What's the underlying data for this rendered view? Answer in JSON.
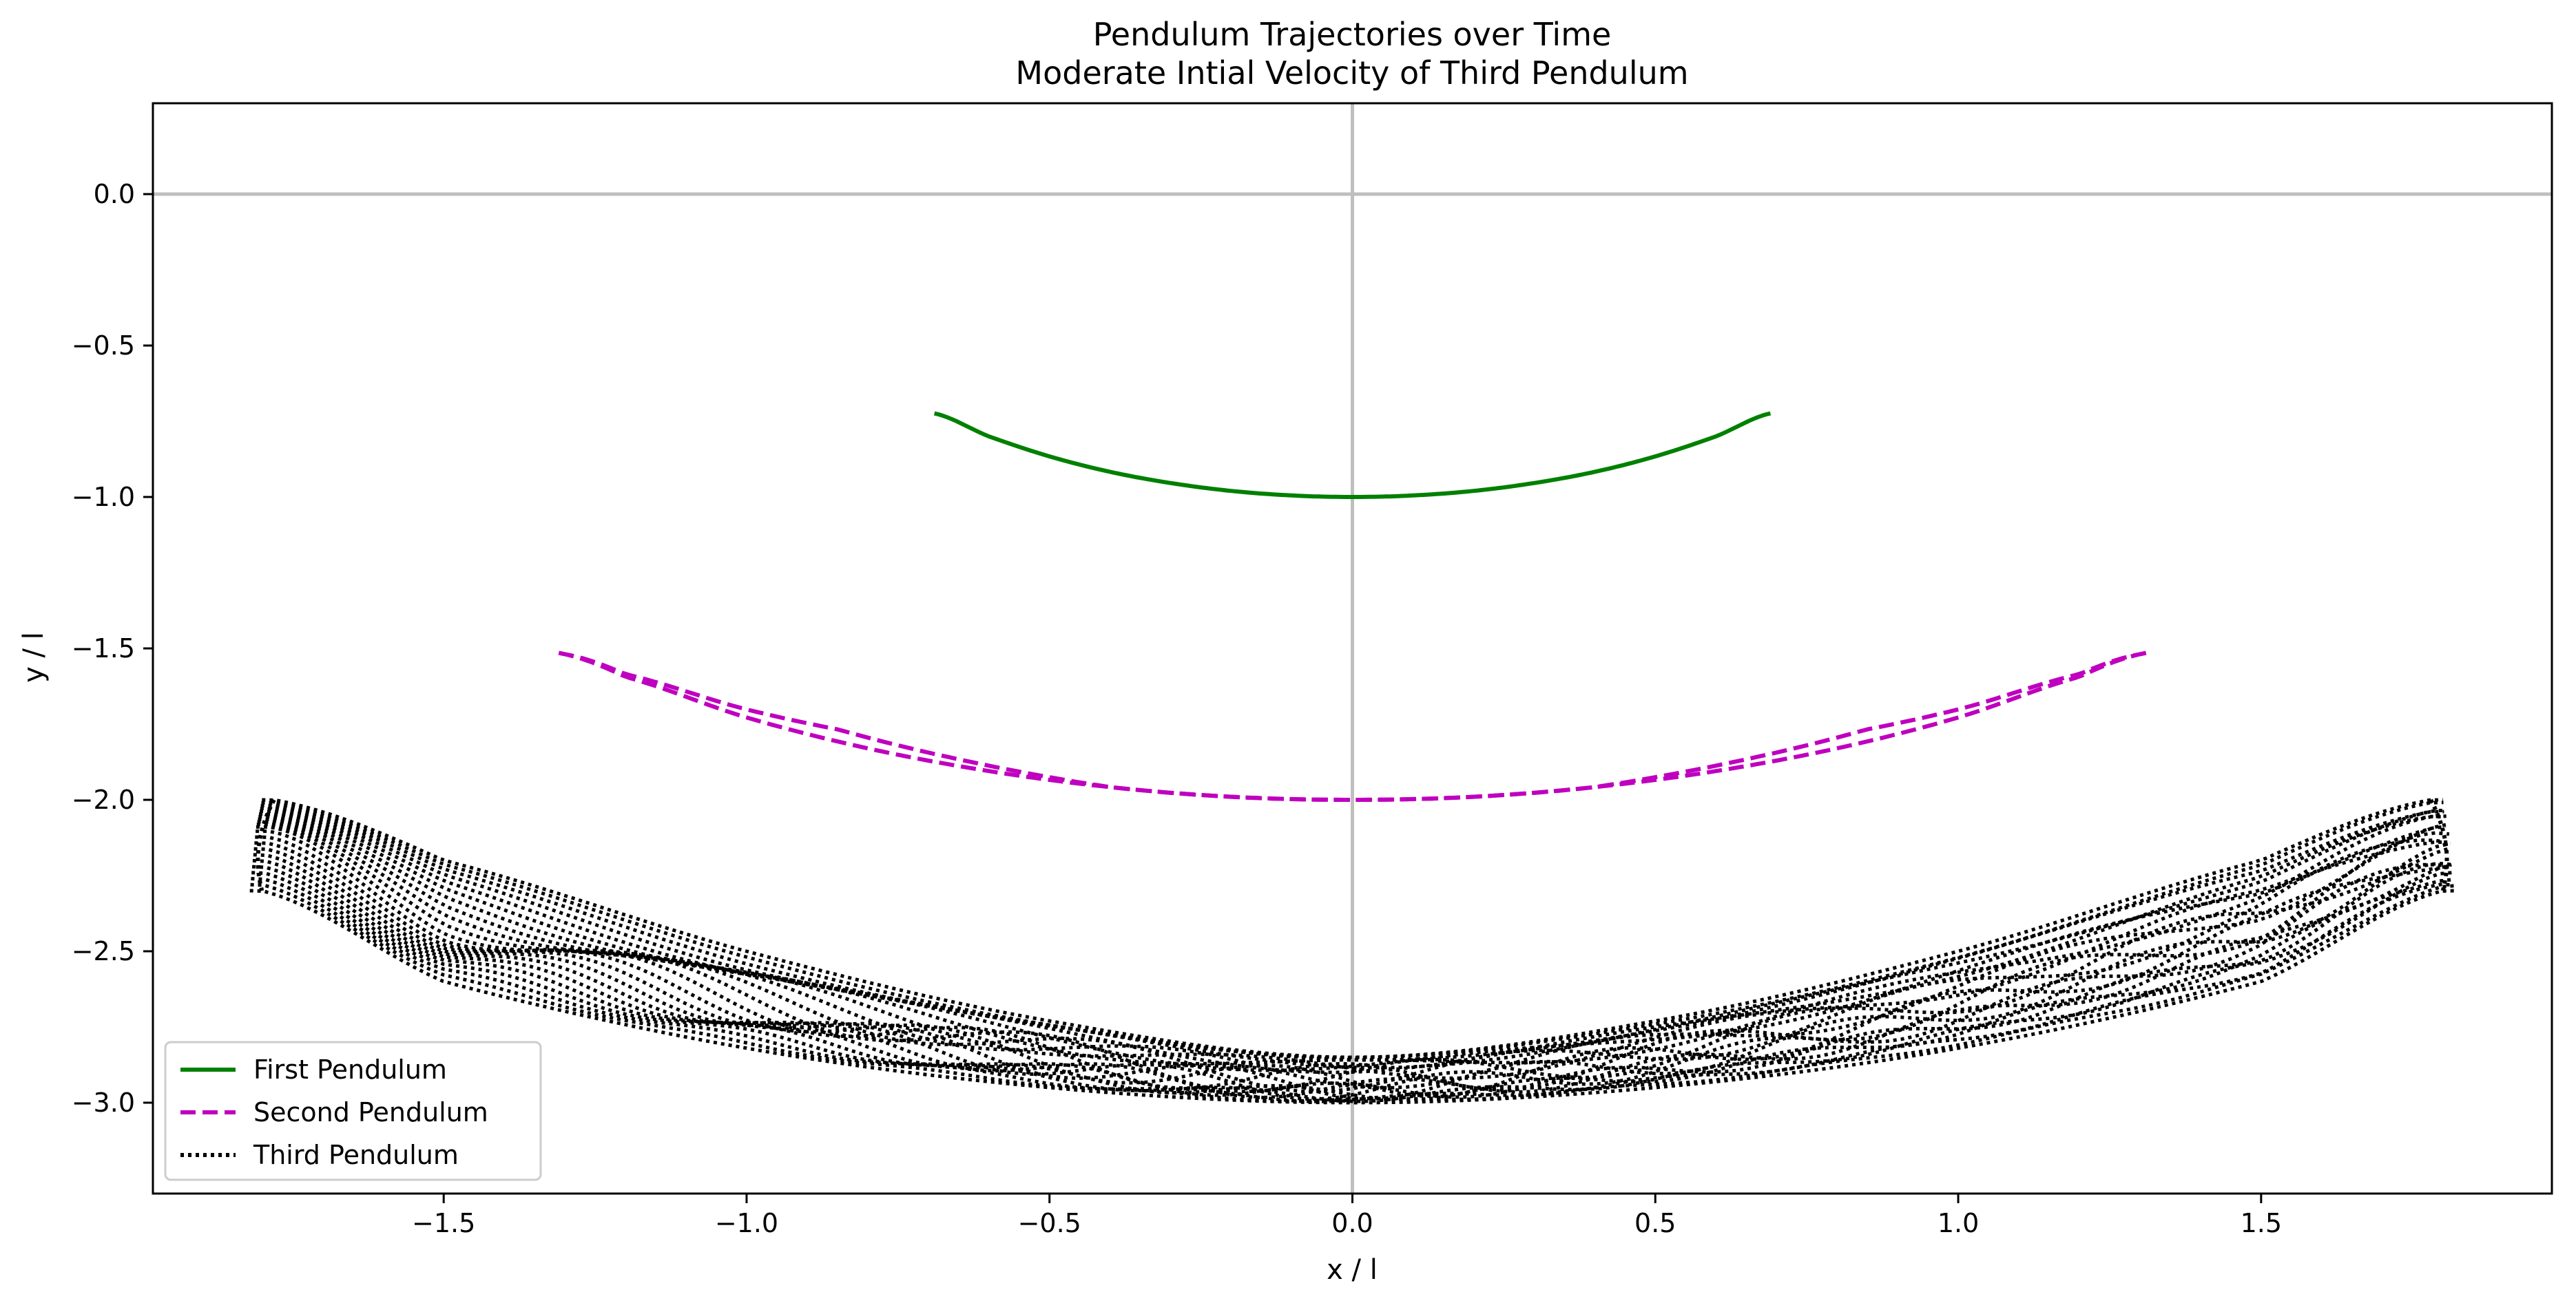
{
  "chart_data": {
    "type": "line",
    "title": "Pendulum Trajectories over Time",
    "subtitle": "Moderate Intial Velocity of Third Pendulum",
    "xlabel": "x / l",
    "ylabel": "y / l",
    "xlim": [
      -1.98,
      1.98
    ],
    "ylim": [
      -3.3,
      0.3
    ],
    "x_ticks": [
      -1.5,
      -1.0,
      -0.5,
      0.0,
      0.5,
      1.0,
      1.5
    ],
    "x_tick_labels": [
      "−1.5",
      "−1.0",
      "−0.5",
      "0.0",
      "0.5",
      "1.0",
      "1.5"
    ],
    "y_ticks": [
      0.0,
      -0.5,
      -1.0,
      -1.5,
      -2.0,
      -2.5,
      -3.0
    ],
    "y_tick_labels": [
      "0.0",
      "−0.5",
      "−1.0",
      "−1.5",
      "−2.0",
      "−2.5",
      "−3.0"
    ],
    "grid": false,
    "reference_lines": {
      "x": 0.0,
      "y": 0.0,
      "color": "#bfbfbf"
    },
    "legend": {
      "position": "lower-left"
    },
    "series": [
      {
        "name": "First Pendulum",
        "style": "solid",
        "color": "#008000",
        "x": [
          -0.69,
          -0.6,
          -0.5,
          -0.4,
          -0.3,
          -0.2,
          -0.1,
          0.0,
          0.1,
          0.2,
          0.3,
          0.4,
          0.5,
          0.6,
          0.69
        ],
        "y": [
          -0.724,
          -0.8,
          -0.866,
          -0.917,
          -0.954,
          -0.98,
          -0.995,
          -1.0,
          -0.995,
          -0.98,
          -0.954,
          -0.917,
          -0.866,
          -0.8,
          -0.724
        ]
      },
      {
        "name": "Second Pendulum",
        "style": "dashed",
        "color": "#bf00bf",
        "x": [
          -1.31,
          -1.2,
          -1.0,
          -0.8,
          -0.6,
          -0.4,
          -0.2,
          0.0,
          0.2,
          0.4,
          0.6,
          0.8,
          1.0,
          1.2,
          1.31
        ],
        "y": [
          -1.515,
          -1.594,
          -1.728,
          -1.83,
          -1.905,
          -1.958,
          -1.99,
          -2.0,
          -1.99,
          -1.958,
          -1.905,
          -1.83,
          -1.728,
          -1.594,
          -1.515
        ]
      },
      {
        "name": "Third Pendulum",
        "style": "dotted",
        "color": "#000000",
        "x_range": [
          -1.82,
          1.82
        ],
        "top_edge": {
          "x": [
            -1.78,
            -1.5,
            -1.0,
            -0.5,
            0.0,
            0.5,
            1.0,
            1.5,
            1.78
          ],
          "y": [
            -2.0,
            -2.2,
            -2.5,
            -2.73,
            -2.85,
            -2.73,
            -2.5,
            -2.2,
            -2.0
          ]
        },
        "bottom_edge": {
          "x": [
            -1.8,
            -1.5,
            -1.0,
            -0.5,
            0.0,
            0.5,
            1.0,
            1.5,
            1.8
          ],
          "y": [
            -2.3,
            -2.6,
            -2.82,
            -2.95,
            -3.0,
            -2.95,
            -2.82,
            -2.6,
            -2.3
          ]
        }
      }
    ]
  }
}
